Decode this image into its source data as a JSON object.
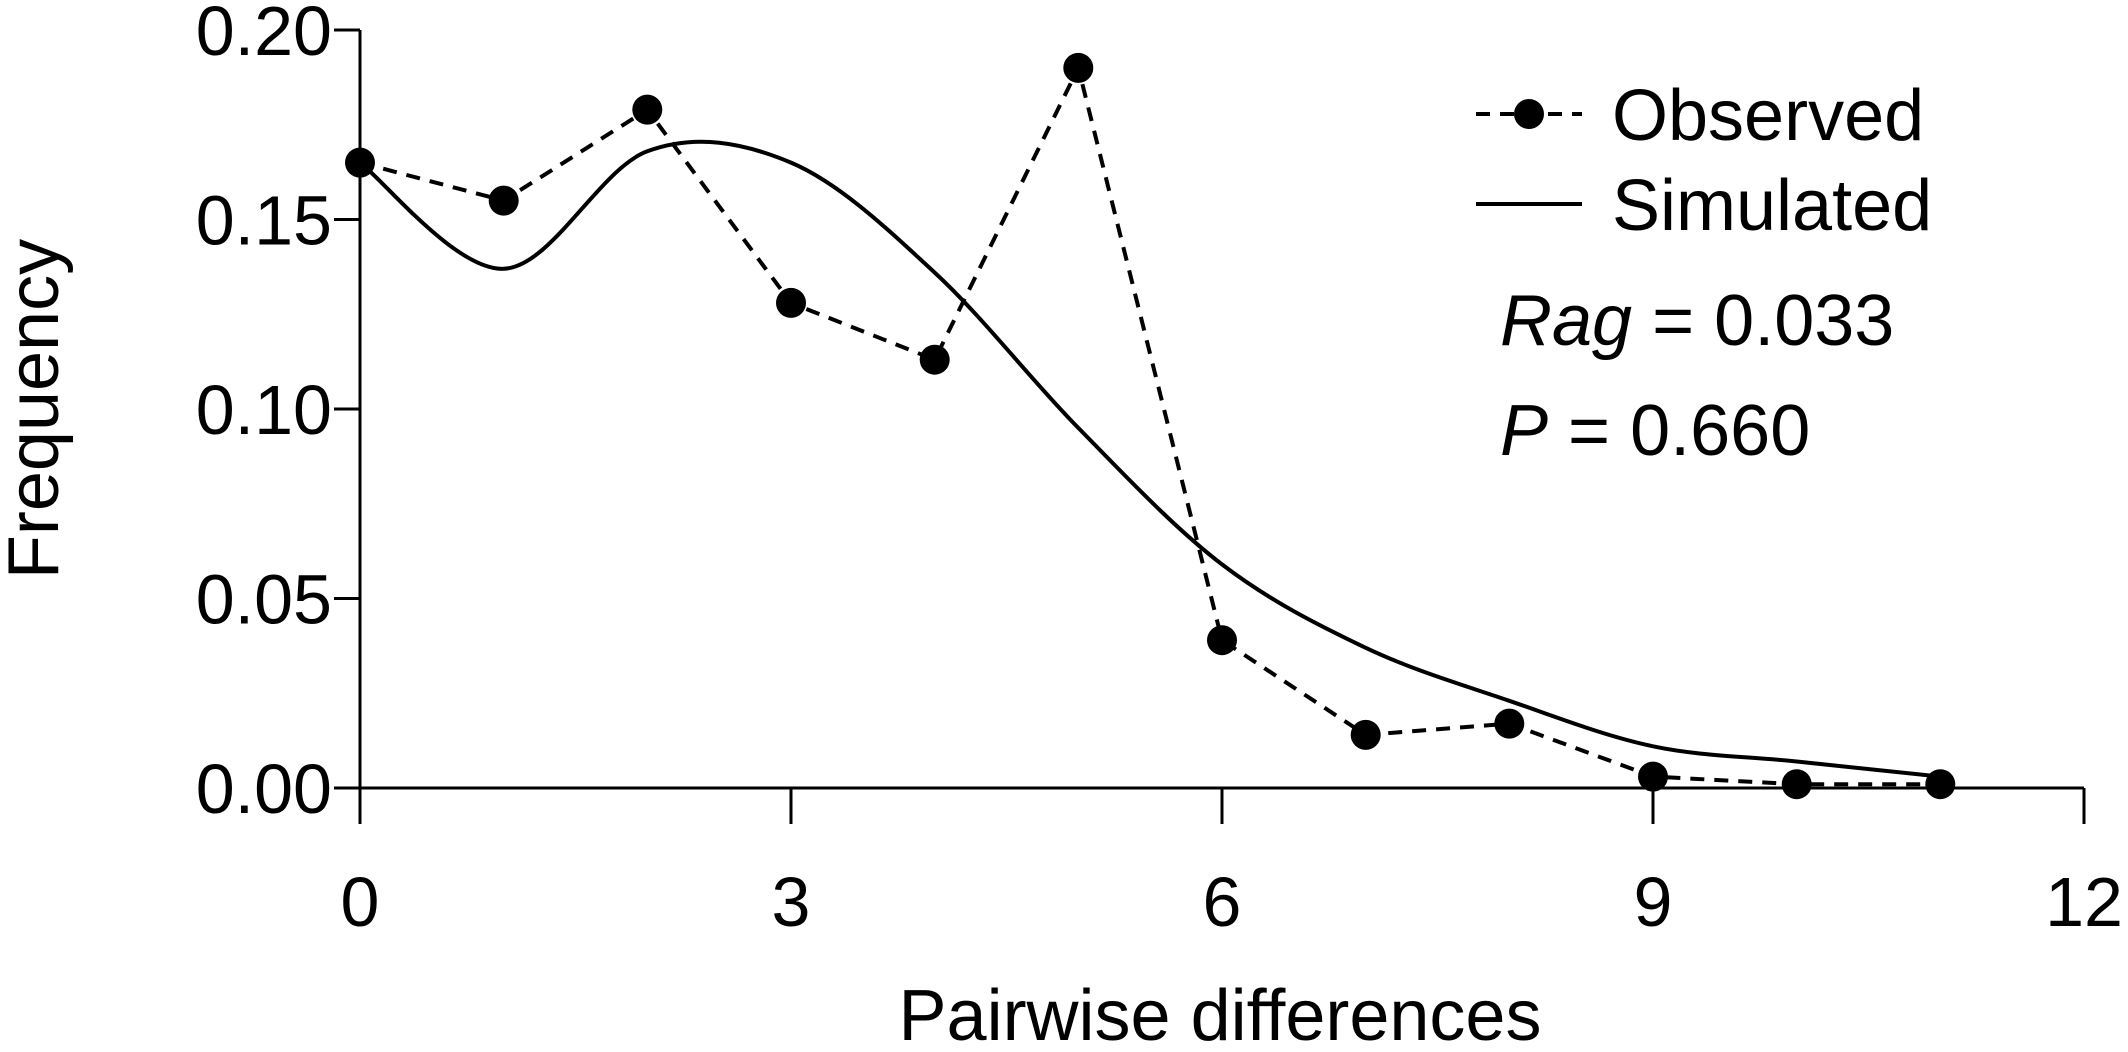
{
  "chart_data": {
    "type": "line",
    "xlabel": "Pairwise differences",
    "ylabel": "Frequency",
    "xlim": [
      0,
      12
    ],
    "ylim": [
      0,
      0.2
    ],
    "x_ticks": [
      "0",
      "3",
      "6",
      "9",
      "12"
    ],
    "y_ticks": [
      "0.00",
      "0.05",
      "0.10",
      "0.15",
      "0.20"
    ],
    "legend_position": "top-right",
    "series": [
      {
        "name": "Observed",
        "style": "dashed-with-markers",
        "x": [
          0,
          1,
          2,
          3,
          4,
          5,
          6,
          7,
          8,
          9,
          10,
          11
        ],
        "values": [
          0.165,
          0.155,
          0.179,
          0.128,
          0.113,
          0.19,
          0.039,
          0.014,
          0.017,
          0.003,
          0.001,
          0.001
        ]
      },
      {
        "name": "Simulated",
        "style": "solid-smooth",
        "x": [
          0,
          1,
          2,
          3,
          4,
          5,
          6,
          7,
          8,
          9,
          10,
          11
        ],
        "values": [
          0.165,
          0.137,
          0.168,
          0.165,
          0.136,
          0.095,
          0.059,
          0.037,
          0.023,
          0.011,
          0.007,
          0.003
        ]
      }
    ],
    "annotations": {
      "rag_label": "Rag",
      "rag_value": " = 0.033",
      "p_label": "P",
      "p_value": " = 0.660"
    }
  }
}
